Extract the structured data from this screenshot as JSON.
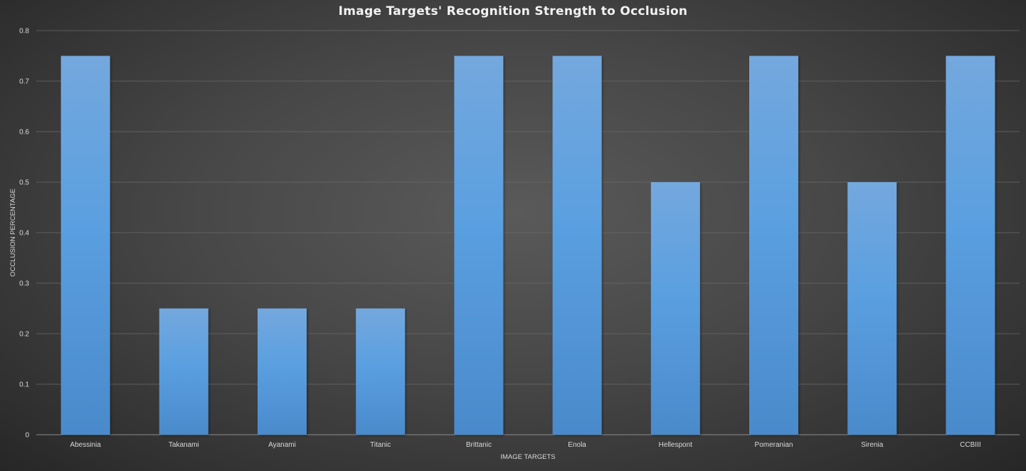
{
  "chart_data": {
    "type": "bar",
    "title": "Image Targets' Recognition Strength to Occlusion",
    "xlabel": "IMAGE TARGETS",
    "ylabel": "OCCLUSION PERCENTAGE",
    "categories": [
      "Abessinia",
      "Takanami",
      "Ayanami",
      "Titanic",
      "Brittanic",
      "Enola",
      "Hellespont",
      "Pomeranian",
      "Sirenia",
      "CCBIII"
    ],
    "values": [
      0.75,
      0.25,
      0.25,
      0.25,
      0.75,
      0.75,
      0.5,
      0.75,
      0.5,
      0.75
    ],
    "ylim": [
      0,
      0.8
    ],
    "yticks": [
      "0",
      "0.1",
      "0.2",
      "0.3",
      "0.4",
      "0.5",
      "0.6",
      "0.7",
      "0.8"
    ],
    "grid": true,
    "legend": "none",
    "bar_color": "#5b9bd5"
  }
}
